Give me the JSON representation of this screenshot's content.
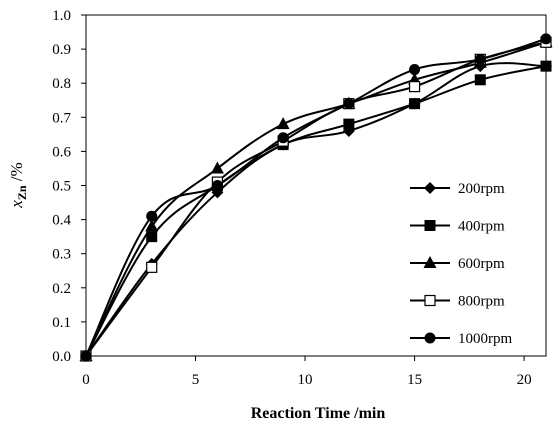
{
  "chart_data": {
    "type": "line",
    "title": "",
    "xlabel": "Reaction Time /min",
    "ylabel": {
      "main": "x",
      "sub": "Zn",
      "rest": " /%"
    },
    "xlim": [
      0,
      21
    ],
    "ylim": [
      0.0,
      1.0
    ],
    "x_ticks": [
      0,
      5,
      10,
      15,
      20
    ],
    "x_tick_labels": [
      "0",
      "5",
      "10",
      "15",
      "20"
    ],
    "y_ticks": [
      0.0,
      0.1,
      0.2,
      0.3,
      0.4,
      0.5,
      0.6,
      0.7,
      0.8,
      0.9,
      1.0
    ],
    "y_tick_labels": [
      "0.0",
      "0.1",
      "0.2",
      "0.3",
      "0.4",
      "0.5",
      "0.6",
      "0.7",
      "0.8",
      "0.9",
      "1.0"
    ],
    "grid": false,
    "legend_position": "right",
    "line_color": "#000000",
    "series": [
      {
        "name": "200rpm",
        "marker": "diamond",
        "x": [
          0,
          3,
          6,
          9,
          12,
          15,
          18,
          21
        ],
        "y": [
          0.0,
          0.27,
          0.48,
          0.62,
          0.66,
          0.74,
          0.85,
          0.85
        ]
      },
      {
        "name": "400rpm",
        "marker": "square",
        "x": [
          0,
          3,
          6,
          9,
          12,
          15,
          18,
          21
        ],
        "y": [
          0.0,
          0.35,
          0.5,
          0.62,
          0.68,
          0.74,
          0.81,
          0.85
        ]
      },
      {
        "name": "600rpm",
        "marker": "triangle",
        "x": [
          0,
          3,
          6,
          9,
          12,
          15,
          18,
          21
        ],
        "y": [
          0.0,
          0.38,
          0.55,
          0.68,
          0.74,
          0.81,
          0.86,
          0.92
        ]
      },
      {
        "name": "800rpm",
        "marker": "square-open",
        "x": [
          0,
          3,
          6,
          9,
          12,
          15,
          18,
          21
        ],
        "y": [
          0.0,
          0.26,
          0.51,
          0.63,
          0.74,
          0.79,
          0.87,
          0.92
        ]
      },
      {
        "name": "1000rpm",
        "marker": "circle",
        "x": [
          0,
          3,
          6,
          9,
          12,
          15,
          18,
          21
        ],
        "y": [
          0.0,
          0.41,
          0.5,
          0.64,
          0.74,
          0.84,
          0.87,
          0.93
        ]
      }
    ]
  }
}
